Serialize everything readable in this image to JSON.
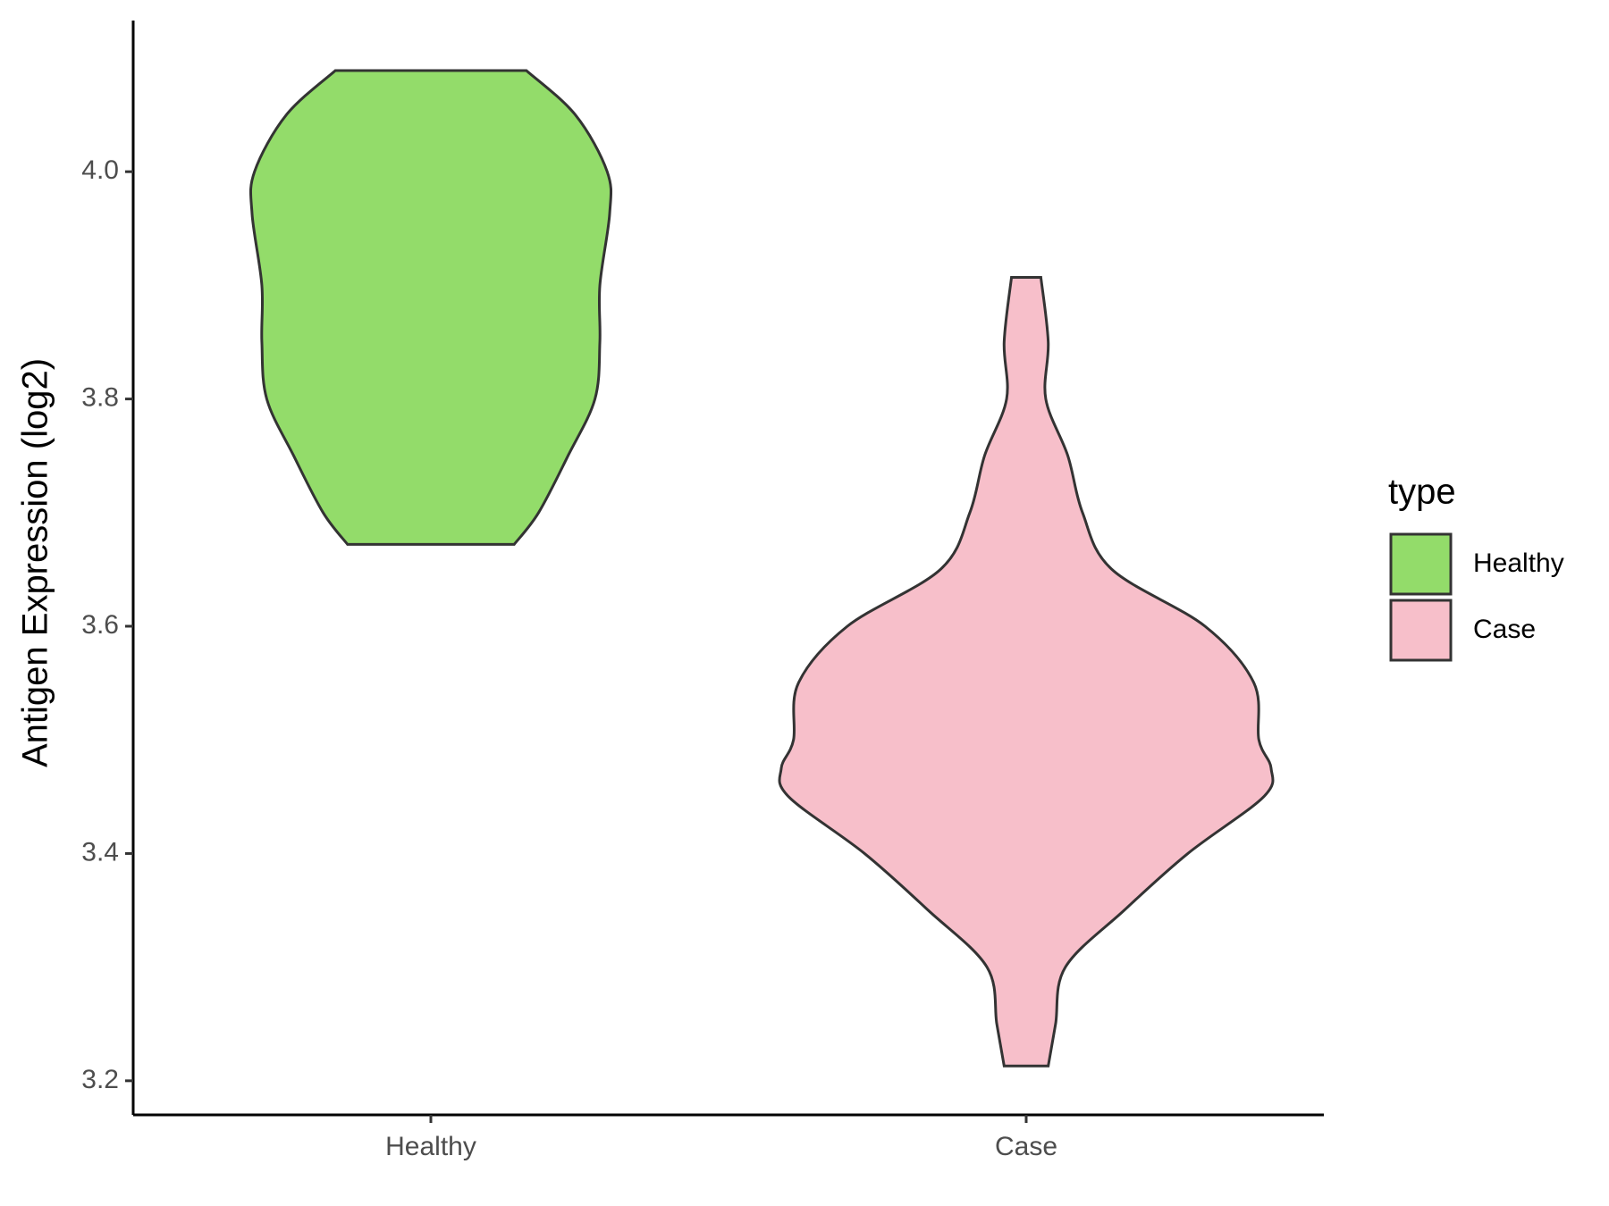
{
  "chart_data": {
    "type": "violin",
    "y_label": "Antigen Expression (log2)",
    "categories": [
      "Healthy",
      "Case"
    ],
    "legend_title": "type",
    "ylim": [
      3.17,
      4.133
    ],
    "yticks": [
      {
        "value": 3.2,
        "label": "3.2"
      },
      {
        "value": 3.4,
        "label": "3.4"
      },
      {
        "value": 3.6,
        "label": "3.6"
      },
      {
        "value": 3.8,
        "label": "3.8"
      },
      {
        "value": 4.0,
        "label": "4.0"
      }
    ],
    "legend_position": "right",
    "series": [
      {
        "name": "Healthy",
        "color": "#93dc6a",
        "y": [
          4.089,
          4.05,
          4.0,
          3.963,
          3.9,
          3.85,
          3.8,
          3.75,
          3.7,
          3.672
        ],
        "density": [
          0.39,
          0.59,
          0.72,
          0.73,
          0.69,
          0.69,
          0.67,
          0.56,
          0.44,
          0.34
        ]
      },
      {
        "name": "Case",
        "color": "#f7bfca",
        "y": [
          3.907,
          3.85,
          3.8,
          3.75,
          3.7,
          3.65,
          3.6,
          3.55,
          3.5,
          3.475,
          3.45,
          3.4,
          3.35,
          3.3,
          3.25,
          3.213
        ],
        "density": [
          0.06,
          0.09,
          0.08,
          0.17,
          0.23,
          0.35,
          0.73,
          0.93,
          0.95,
          1.0,
          0.97,
          0.66,
          0.4,
          0.16,
          0.12,
          0.09
        ]
      }
    ]
  }
}
